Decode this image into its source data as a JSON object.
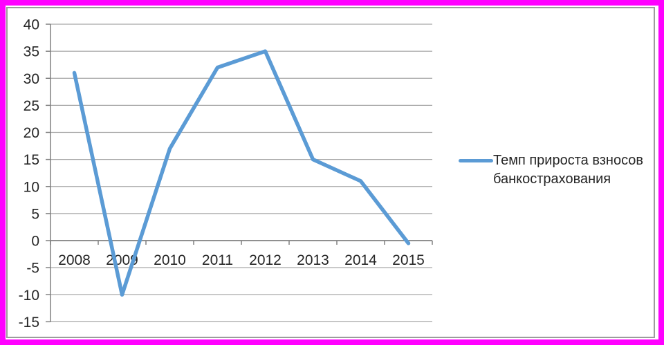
{
  "colors": {
    "frame": "#ff00ff",
    "chart_border": "#9c9c9c",
    "grid": "#a6a6a6",
    "axis": "#808080",
    "text": "#262626",
    "series_line": "#5b9bd5",
    "background": "#ffffff"
  },
  "chart_data": {
    "type": "line",
    "title": "",
    "xlabel": "",
    "ylabel": "",
    "categories": [
      "2008",
      "2009",
      "2010",
      "2011",
      "2012",
      "2013",
      "2014",
      "2015"
    ],
    "series": [
      {
        "name": "Темп прироста взносов банкострахования",
        "color": "#5b9bd5",
        "values": [
          31,
          -10,
          17,
          32,
          35,
          15,
          11,
          -0.5
        ]
      }
    ],
    "ylim": [
      -15,
      40
    ],
    "ytick_step": 5,
    "yticks": [
      40,
      35,
      30,
      25,
      20,
      15,
      10,
      5,
      0,
      -5,
      -10,
      -15
    ],
    "grid": true,
    "legend_position": "right"
  }
}
